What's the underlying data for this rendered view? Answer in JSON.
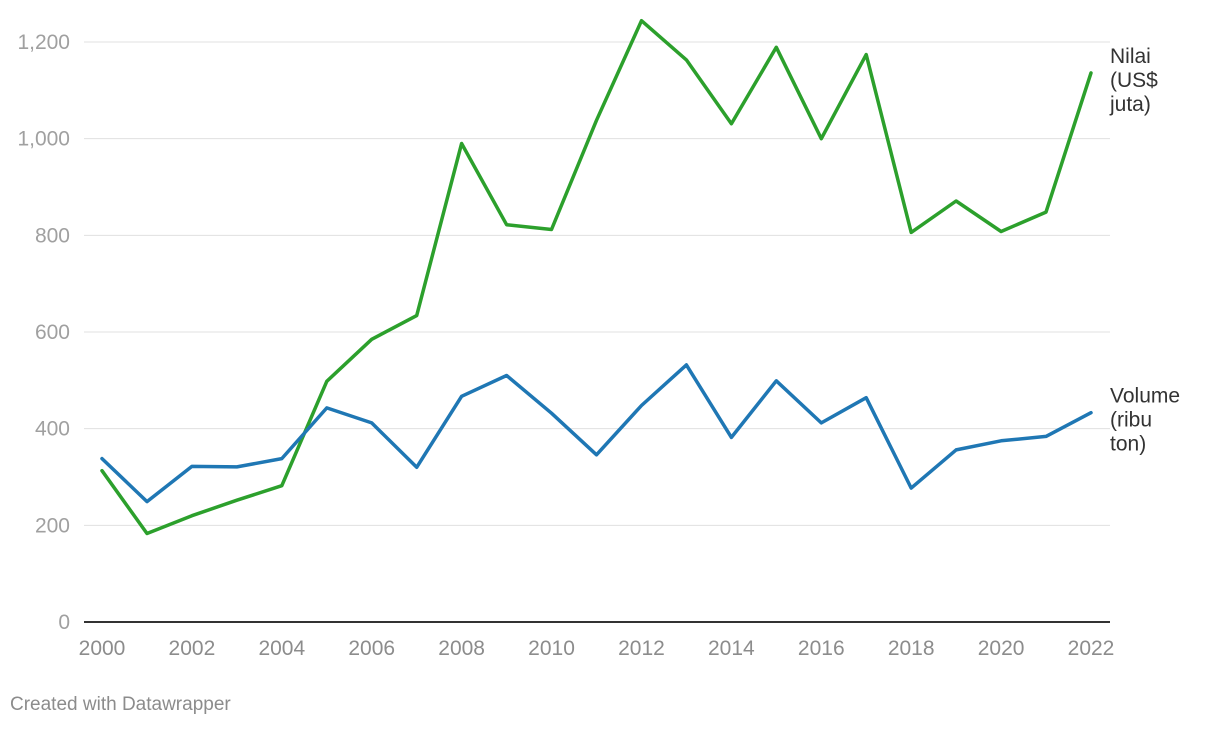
{
  "chart_data": {
    "type": "line",
    "x": [
      2000,
      2001,
      2002,
      2003,
      2004,
      2005,
      2006,
      2007,
      2008,
      2009,
      2010,
      2011,
      2012,
      2013,
      2014,
      2015,
      2016,
      2017,
      2018,
      2019,
      2020,
      2021,
      2022
    ],
    "xticks": [
      "2000",
      "2002",
      "2004",
      "2006",
      "2008",
      "2010",
      "2012",
      "2014",
      "2016",
      "2018",
      "2020",
      "2022"
    ],
    "yticks": [
      "0",
      "200",
      "400",
      "600",
      "800",
      "1,000",
      "1,200"
    ],
    "ylim": [
      0,
      1200
    ],
    "xlim": [
      2000,
      2022
    ],
    "grid": true,
    "series": [
      {
        "name": "Nilai (US$ juta)",
        "label_lines": [
          "Nilai",
          "(US$",
          "juta)"
        ],
        "color": "#2ca02c",
        "values": [
          313,
          183,
          220,
          252,
          282,
          498,
          585,
          634,
          990,
          822,
          812,
          1038,
          1244,
          1163,
          1031,
          1189,
          1000,
          1174,
          806,
          871,
          808,
          848,
          1136
        ]
      },
      {
        "name": "Volume (ribu ton)",
        "label_lines": [
          "Volume",
          "(ribu",
          "ton)"
        ],
        "color": "#1f77b4",
        "values": [
          338,
          249,
          322,
          321,
          338,
          443,
          412,
          320,
          467,
          510,
          432,
          346,
          448,
          532,
          382,
          499,
          412,
          464,
          277,
          356,
          375,
          384,
          433
        ]
      }
    ]
  },
  "footer": {
    "credit": "Created with Datawrapper"
  }
}
